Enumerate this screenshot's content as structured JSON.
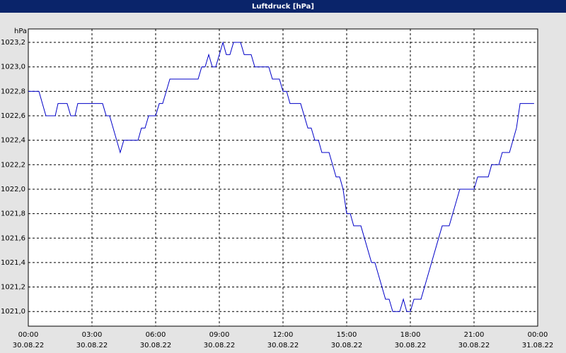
{
  "chart_data": {
    "type": "line",
    "title": "Luftdruck [hPa]",
    "y_label": "hPa",
    "color": "#0000c8",
    "grid": true,
    "xlim": [
      0,
      24
    ],
    "ylim": [
      1020.88,
      1023.31
    ],
    "xticks": [
      {
        "value": 0,
        "label": "00:00"
      },
      {
        "value": 3,
        "label": "03:00"
      },
      {
        "value": 6,
        "label": "06:00"
      },
      {
        "value": 9,
        "label": "09:00"
      },
      {
        "value": 12,
        "label": "12:00"
      },
      {
        "value": 15,
        "label": "15:00"
      },
      {
        "value": 18,
        "label": "18:00"
      },
      {
        "value": 21,
        "label": "21:00"
      },
      {
        "value": 24,
        "label": "00:00"
      }
    ],
    "xtick_dates": [
      "30.08.22",
      "30.08.22",
      "30.08.22",
      "30.08.22",
      "30.08.22",
      "30.08.22",
      "30.08.22",
      "30.08.22",
      "31.08.22"
    ],
    "yticks": [
      {
        "value": 1021.0,
        "label": "1021,0"
      },
      {
        "value": 1021.2,
        "label": "1021,2"
      },
      {
        "value": 1021.4,
        "label": "1021,4"
      },
      {
        "value": 1021.6,
        "label": "1021,6"
      },
      {
        "value": 1021.8,
        "label": "1021,8"
      },
      {
        "value": 1022.0,
        "label": "1022,0"
      },
      {
        "value": 1022.2,
        "label": "1022,2"
      },
      {
        "value": 1022.4,
        "label": "1022,4"
      },
      {
        "value": 1022.6,
        "label": "1022,6"
      },
      {
        "value": 1022.8,
        "label": "1022,8"
      },
      {
        "value": 1023.0,
        "label": "1023,0"
      },
      {
        "value": 1023.2,
        "label": "1023,2"
      }
    ],
    "x": [
      0,
      0.5,
      0.83,
      1.27,
      1.4,
      1.83,
      2,
      2.2,
      2.33,
      3.5,
      3.67,
      3.83,
      4.33,
      4.5,
      5.17,
      5.33,
      5.5,
      5.67,
      6,
      6.17,
      6.33,
      6.67,
      8,
      8.17,
      8.33,
      8.5,
      8.67,
      8.83,
      9.17,
      9.33,
      9.5,
      9.67,
      10,
      10.17,
      10.5,
      10.67,
      11.33,
      11.5,
      11.83,
      12,
      12.17,
      12.33,
      12.83,
      13.17,
      13.33,
      13.5,
      13.67,
      13.83,
      14.17,
      14.5,
      14.67,
      14.83,
      15,
      15.17,
      15.33,
      15.67,
      16.17,
      16.33,
      16.83,
      17,
      17.17,
      17.5,
      17.67,
      17.83,
      18,
      18.17,
      18.5,
      19,
      19.5,
      19.83,
      20.33,
      21,
      21.17,
      21.67,
      21.83,
      22.17,
      22.33,
      22.67,
      23,
      23.17,
      23.83
    ],
    "values": [
      1022.8,
      1022.8,
      1022.6,
      1022.6,
      1022.7,
      1022.7,
      1022.6,
      1022.6,
      1022.7,
      1022.7,
      1022.6,
      1022.6,
      1022.3,
      1022.4,
      1022.4,
      1022.5,
      1022.5,
      1022.6,
      1022.6,
      1022.7,
      1022.7,
      1022.9,
      1022.9,
      1023.0,
      1023.0,
      1023.1,
      1023.0,
      1023.0,
      1023.2,
      1023.1,
      1023.1,
      1023.2,
      1023.2,
      1023.1,
      1023.1,
      1023.0,
      1023.0,
      1022.9,
      1022.9,
      1022.8,
      1022.8,
      1022.7,
      1022.7,
      1022.5,
      1022.5,
      1022.4,
      1022.4,
      1022.3,
      1022.3,
      1022.1,
      1022.1,
      1022.0,
      1021.8,
      1021.8,
      1021.7,
      1021.7,
      1021.4,
      1021.4,
      1021.1,
      1021.1,
      1021.0,
      1021.0,
      1021.1,
      1021.0,
      1021.0,
      1021.1,
      1021.1,
      1021.4,
      1021.7,
      1021.7,
      1022.0,
      1022.0,
      1022.1,
      1022.1,
      1022.2,
      1022.2,
      1022.3,
      1022.3,
      1022.5,
      1022.7,
      1022.7
    ]
  }
}
